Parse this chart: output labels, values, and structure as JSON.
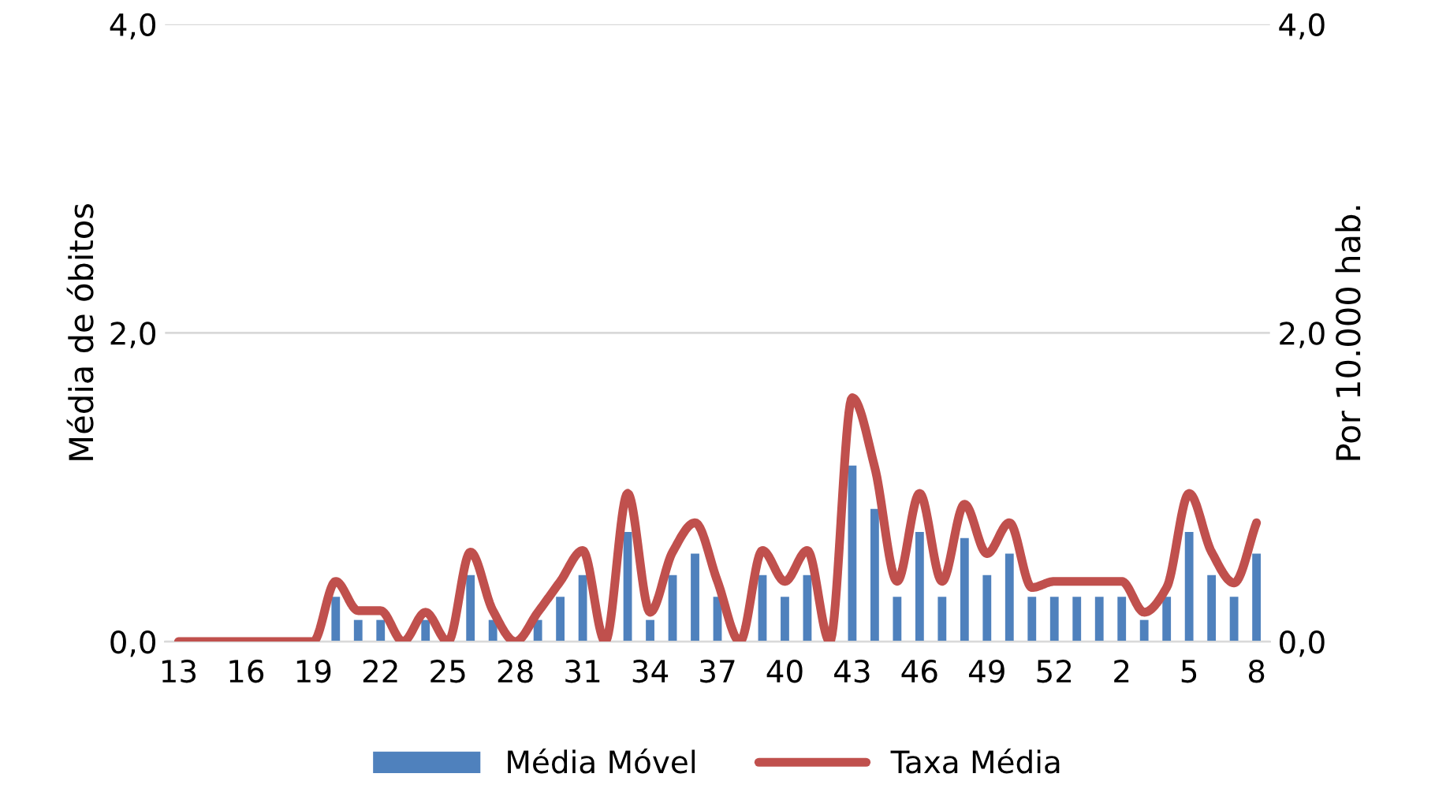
{
  "chart_data": {
    "type": "bar",
    "ylabel": "Média de óbitos",
    "y2label": "Por 10.000 hab.",
    "categories": [
      "13",
      null,
      null,
      "16",
      null,
      null,
      "19",
      null,
      null,
      "22",
      null,
      null,
      "25",
      null,
      null,
      "28",
      null,
      null,
      "31",
      null,
      null,
      "34",
      null,
      null,
      "37",
      null,
      null,
      "40",
      null,
      null,
      "43",
      null,
      null,
      "46",
      null,
      null,
      "49",
      null,
      null,
      "52",
      null,
      null,
      "2",
      null,
      null,
      "5",
      null,
      null,
      "8"
    ],
    "series": [
      {
        "name": "Média Móvel",
        "color": "#4f81bd",
        "values": [
          0,
          0,
          0,
          0,
          0,
          0,
          0,
          0.29,
          0.14,
          0.14,
          0,
          0.14,
          0,
          0.43,
          0.14,
          0,
          0.14,
          0.29,
          0.43,
          0,
          0.71,
          0.14,
          0.43,
          0.57,
          0.29,
          0,
          0.43,
          0.29,
          0.43,
          0,
          1.14,
          0.86,
          0.29,
          0.71,
          0.29,
          0.67,
          0.43,
          0.57,
          0.29,
          0.29,
          0.29,
          0.29,
          0.29,
          0.14,
          0.29,
          0.71,
          0.43,
          0.29,
          0.57
        ]
      },
      {
        "name": "Taxa Média",
        "type": "line",
        "axis": "y2",
        "color": "#c0504d",
        "values": [
          0,
          0,
          0,
          0,
          0,
          0,
          0,
          0.39,
          0.2,
          0.2,
          0,
          0.19,
          0,
          0.58,
          0.2,
          0,
          0.19,
          0.39,
          0.59,
          0,
          0.96,
          0.19,
          0.58,
          0.77,
          0.39,
          0,
          0.59,
          0.39,
          0.59,
          0,
          1.58,
          1.13,
          0.39,
          0.96,
          0.39,
          0.89,
          0.57,
          0.77,
          0.35,
          0.39,
          0.39,
          0.39,
          0.39,
          0.19,
          0.35,
          0.96,
          0.58,
          0.38,
          0.77
        ]
      }
    ],
    "ylim": [
      0,
      4
    ],
    "yticks": [
      {
        "value": 0,
        "label": "0,0"
      },
      {
        "value": 2,
        "label": "2,0"
      },
      {
        "value": 4,
        "label": "4,0"
      }
    ],
    "y2lim": [
      0,
      4
    ],
    "y2ticks": [
      {
        "value": 0,
        "label": "0,0"
      },
      {
        "value": 2,
        "label": "2,0"
      },
      {
        "value": 4,
        "label": "4,0"
      }
    ],
    "grid": "y",
    "legend": "bottom"
  }
}
